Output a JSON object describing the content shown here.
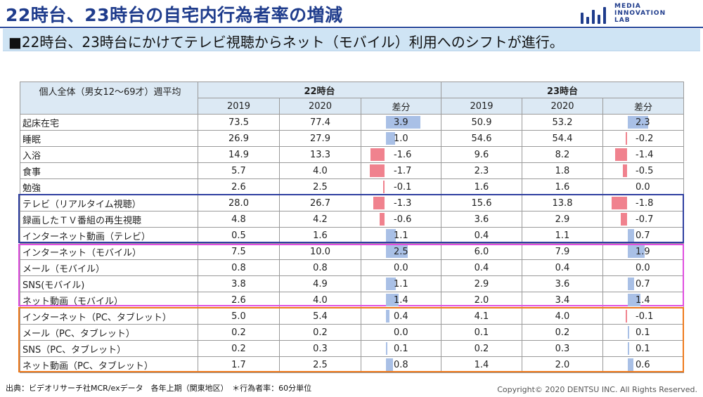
{
  "header": {
    "title": "22時台、23時台の自宅内行為者率の増減",
    "logo_lines": [
      "MEDIA",
      "INNOVATION",
      "LAB"
    ]
  },
  "subtitle": "■22時台、23時台にかけてテレビ視聴からネット（モバイル）利用へのシフトが進行。",
  "table": {
    "corner_label": "個人全体（男女12〜69才）週平均",
    "group_22": "22時台",
    "group_23": "23時台",
    "col_2019": "2019",
    "col_2020": "2020",
    "col_diff": "差分",
    "rows": [
      {
        "label": "起床在宅",
        "h22_2019": "73.5",
        "h22_2020": "77.4",
        "h22_diff": "3.9",
        "h23_2019": "50.9",
        "h23_2020": "53.2",
        "h23_diff": "2.3"
      },
      {
        "label": "睡眠",
        "h22_2019": "26.9",
        "h22_2020": "27.9",
        "h22_diff": "1.0",
        "h23_2019": "54.6",
        "h23_2020": "54.4",
        "h23_diff": "-0.2"
      },
      {
        "label": "入浴",
        "h22_2019": "14.9",
        "h22_2020": "13.3",
        "h22_diff": "-1.6",
        "h23_2019": "9.6",
        "h23_2020": "8.2",
        "h23_diff": "-1.4"
      },
      {
        "label": "食事",
        "h22_2019": "5.7",
        "h22_2020": "4.0",
        "h22_diff": "-1.7",
        "h23_2019": "2.3",
        "h23_2020": "1.8",
        "h23_diff": "-0.5"
      },
      {
        "label": "勉強",
        "h22_2019": "2.6",
        "h22_2020": "2.5",
        "h22_diff": "-0.1",
        "h23_2019": "1.6",
        "h23_2020": "1.6",
        "h23_diff": "0.0"
      },
      {
        "label": "テレビ（リアルタイム視聴）",
        "h22_2019": "28.0",
        "h22_2020": "26.7",
        "h22_diff": "-1.3",
        "h23_2019": "15.6",
        "h23_2020": "13.8",
        "h23_diff": "-1.8"
      },
      {
        "label": "録画したＴＶ番組の再生視聴",
        "h22_2019": "4.8",
        "h22_2020": "4.2",
        "h22_diff": "-0.6",
        "h23_2019": "3.6",
        "h23_2020": "2.9",
        "h23_diff": "-0.7"
      },
      {
        "label": "インターネット動画（テレビ）",
        "h22_2019": "0.5",
        "h22_2020": "1.6",
        "h22_diff": "1.1",
        "h23_2019": "0.4",
        "h23_2020": "1.1",
        "h23_diff": "0.7"
      },
      {
        "label": "インターネット（モバイル）",
        "h22_2019": "7.5",
        "h22_2020": "10.0",
        "h22_diff": "2.5",
        "h23_2019": "6.0",
        "h23_2020": "7.9",
        "h23_diff": "1.9"
      },
      {
        "label": "メール（モバイル）",
        "h22_2019": "0.8",
        "h22_2020": "0.8",
        "h22_diff": "0.0",
        "h23_2019": "0.4",
        "h23_2020": "0.4",
        "h23_diff": "0.0"
      },
      {
        "label": "SNS(モバイル)",
        "h22_2019": "3.8",
        "h22_2020": "4.9",
        "h22_diff": "1.1",
        "h23_2019": "2.9",
        "h23_2020": "3.6",
        "h23_diff": "0.7"
      },
      {
        "label": "ネット動画（モバイル）",
        "h22_2019": "2.6",
        "h22_2020": "4.0",
        "h22_diff": "1.4",
        "h23_2019": "2.0",
        "h23_2020": "3.4",
        "h23_diff": "1.4"
      },
      {
        "label": "インターネット（PC、タブレット）",
        "h22_2019": "5.0",
        "h22_2020": "5.4",
        "h22_diff": "0.4",
        "h23_2019": "4.1",
        "h23_2020": "4.0",
        "h23_diff": "-0.1"
      },
      {
        "label": "メール（PC、タブレット）",
        "h22_2019": "0.2",
        "h22_2020": "0.2",
        "h22_diff": "0.0",
        "h23_2019": "0.1",
        "h23_2020": "0.2",
        "h23_diff": "0.1"
      },
      {
        "label": "SNS（PC、タブレット）",
        "h22_2019": "0.2",
        "h22_2020": "0.3",
        "h22_diff": "0.1",
        "h23_2019": "0.2",
        "h23_2020": "0.3",
        "h23_diff": "0.1"
      },
      {
        "label": "ネット動画（PC、タブレット）",
        "h22_2019": "1.7",
        "h22_2020": "2.5",
        "h22_diff": "0.8",
        "h23_2019": "1.4",
        "h23_2020": "2.0",
        "h23_diff": "0.6"
      }
    ]
  },
  "colors": {
    "title": "#1f3c8c",
    "positive_bar": "#a9c0e6",
    "negative_bar": "#f0828e",
    "group_tv": "#2f3fa0",
    "group_mobile": "#e04ee0",
    "group_pc": "#ef7a1c"
  },
  "footer": {
    "source": "出典：ビデオリサーチ社MCR/exデータ　各年上期（関東地区）　＊行為者率：60分単位",
    "copyright": "Copyright© 2020 DENTSU INC. All Rights Reserved."
  }
}
